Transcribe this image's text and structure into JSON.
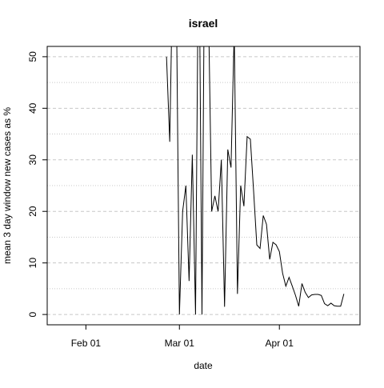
{
  "chart_data": {
    "type": "line",
    "title": "israel",
    "x_label": "date",
    "y_label": "mean  3  day window new cases as %",
    "x": [
      "02-26",
      "02-27",
      "02-28",
      "02-29",
      "03-01",
      "03-02",
      "03-03",
      "03-04",
      "03-05",
      "03-06",
      "03-07",
      "03-08",
      "03-09",
      "03-10",
      "03-11",
      "03-12",
      "03-13",
      "03-14",
      "03-15",
      "03-16",
      "03-17",
      "03-18",
      "03-19",
      "03-20",
      "03-21",
      "03-22",
      "03-23",
      "03-24",
      "03-25",
      "03-26",
      "03-27",
      "03-28",
      "03-29",
      "03-30",
      "03-31",
      "04-01",
      "04-02",
      "04-03",
      "04-04",
      "04-05",
      "04-06",
      "04-07",
      "04-08",
      "04-09",
      "04-10",
      "04-11",
      "04-12",
      "04-13",
      "04-14",
      "04-15",
      "04-16",
      "04-17",
      "04-18",
      "04-19",
      "04-20",
      "04-21"
    ],
    "series": [
      {
        "color": "#000000",
        "values": [
          50,
          33.5,
          70,
          65,
          0,
          20,
          25,
          6.5,
          31,
          0,
          80,
          0,
          90,
          60,
          20,
          23,
          20,
          30,
          1.5,
          32,
          28.5,
          55,
          4,
          25,
          21,
          34.5,
          34,
          24,
          13.5,
          12.8,
          19.2,
          17.5,
          10.7,
          14,
          13.5,
          12.2,
          8,
          5.5,
          7.2,
          5.5,
          3.7,
          1.6,
          6,
          4.3,
          3.3,
          3.8,
          3.9,
          3.9,
          3.7,
          2.1,
          1.7,
          2.2,
          1.7,
          1.6,
          1.6,
          4
        ]
      }
    ],
    "xlim": [
      "01-20",
      "04-26"
    ],
    "xticks": [
      {
        "value": "02-01",
        "label": "Feb 01"
      },
      {
        "value": "03-01",
        "label": "Mar 01"
      },
      {
        "value": "04-01",
        "label": "Apr 01"
      }
    ],
    "ylim": [
      -2,
      52
    ],
    "yticks": [
      0,
      10,
      20,
      30,
      40,
      50
    ],
    "minor_grid_yticks": [
      5,
      15,
      25,
      35,
      45
    ],
    "grid": true
  }
}
